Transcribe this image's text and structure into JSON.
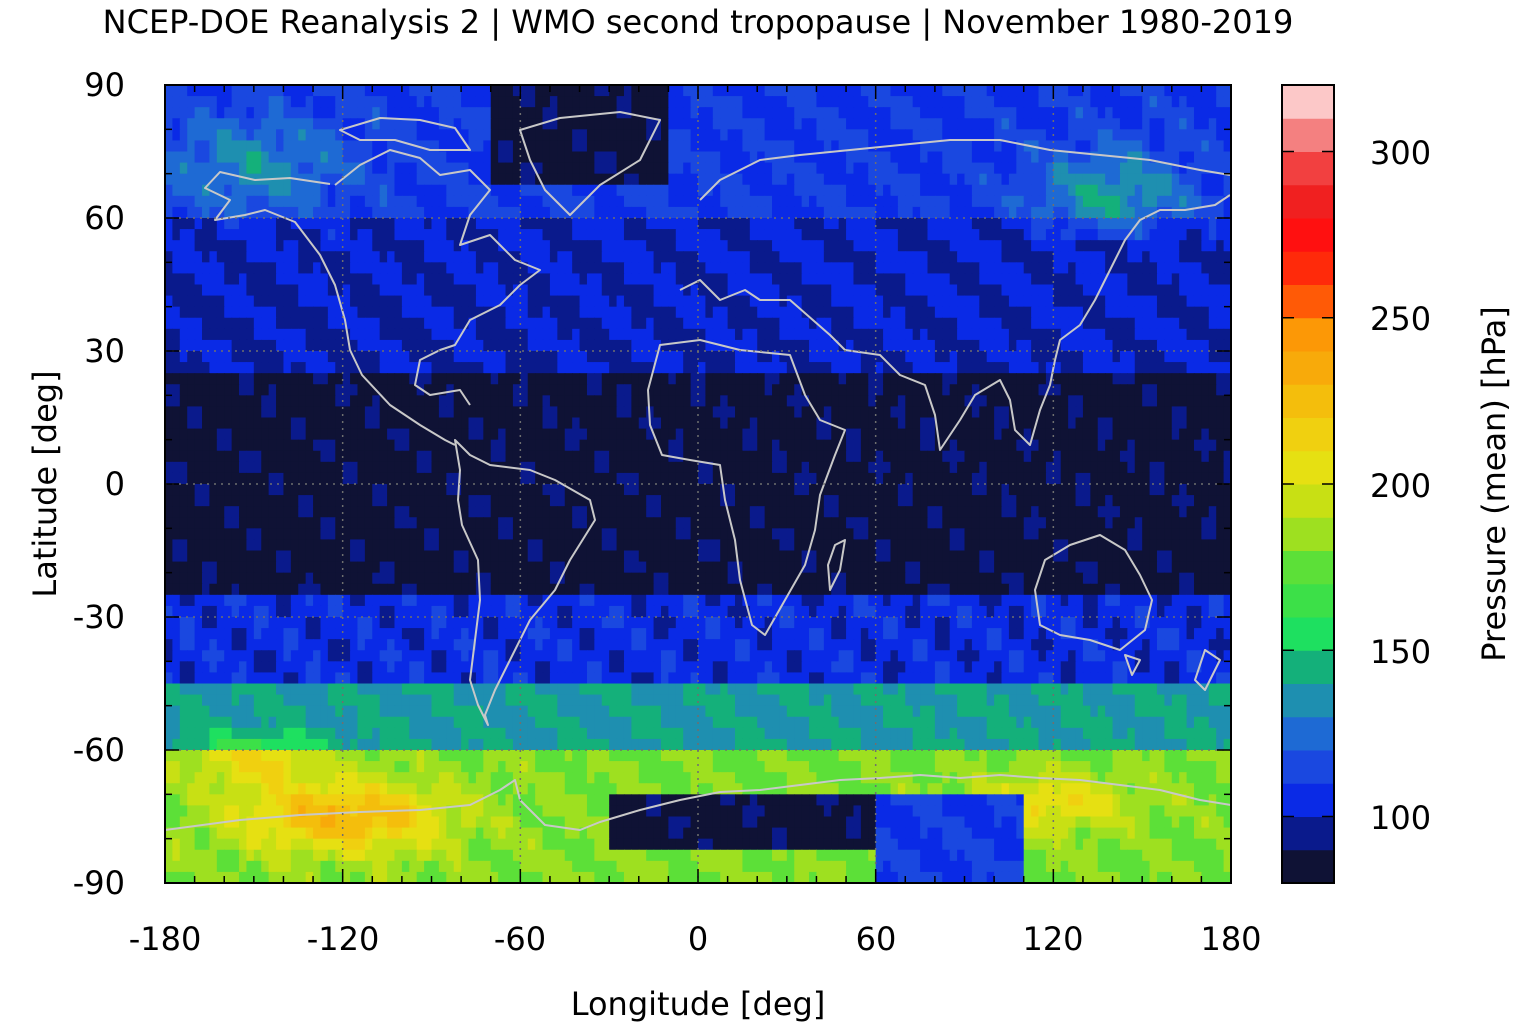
{
  "chart_data": {
    "type": "heatmap",
    "title": "NCEP-DOE Reanalysis 2 | WMO second tropopause | November 1980-2019",
    "xlabel": "Longitude [deg]",
    "ylabel": "Latitude [deg]",
    "xlim": [
      -180,
      180
    ],
    "ylim": [
      -90,
      90
    ],
    "xticks": [
      "-180",
      "-120",
      "-60",
      "0",
      "60",
      "120",
      "180"
    ],
    "yticks": [
      "90",
      "60",
      "30",
      "0",
      "-30",
      "-60",
      "-90"
    ],
    "grid": true,
    "colorbar": {
      "label": "Pressure (mean) [hPa]",
      "range": [
        80,
        320
      ],
      "ticks": [
        "100",
        "150",
        "200",
        "250",
        "300"
      ],
      "colors": [
        "#0f1235",
        "#0a1a8c",
        "#0a2ae6",
        "#1a48e0",
        "#1e6ad4",
        "#1e8fb0",
        "#14b07a",
        "#1ee060",
        "#3ce048",
        "#5ce038",
        "#9ee020",
        "#c8e014",
        "#e6e012",
        "#f0d010",
        "#f4be0c",
        "#f8aa0a",
        "#fc9806",
        "#ff5a06",
        "#ff2a0a",
        "#ff1010",
        "#f02020",
        "#f24040",
        "#f48080",
        "#fcc8c8"
      ]
    },
    "bands": [
      {
        "lat_range": [
          90,
          60
        ],
        "mean_hPa": 110,
        "description": "blue with cyan patches near 160W and 130E"
      },
      {
        "lat_range": [
          60,
          25
        ],
        "mean_hPa": 100
      },
      {
        "lat_range": [
          25,
          -25
        ],
        "mean_hPa": 85
      },
      {
        "lat_range": [
          -25,
          -45
        ],
        "mean_hPa": 105
      },
      {
        "lat_range": [
          -45,
          -60
        ],
        "mean_hPa": 140
      },
      {
        "lat_range": [
          -60,
          -90
        ],
        "mean_hPa": 180,
        "description": "yellow/green maxima near 120W, 60S-80S; dark patches over Antarctica 30W-60E"
      }
    ]
  }
}
